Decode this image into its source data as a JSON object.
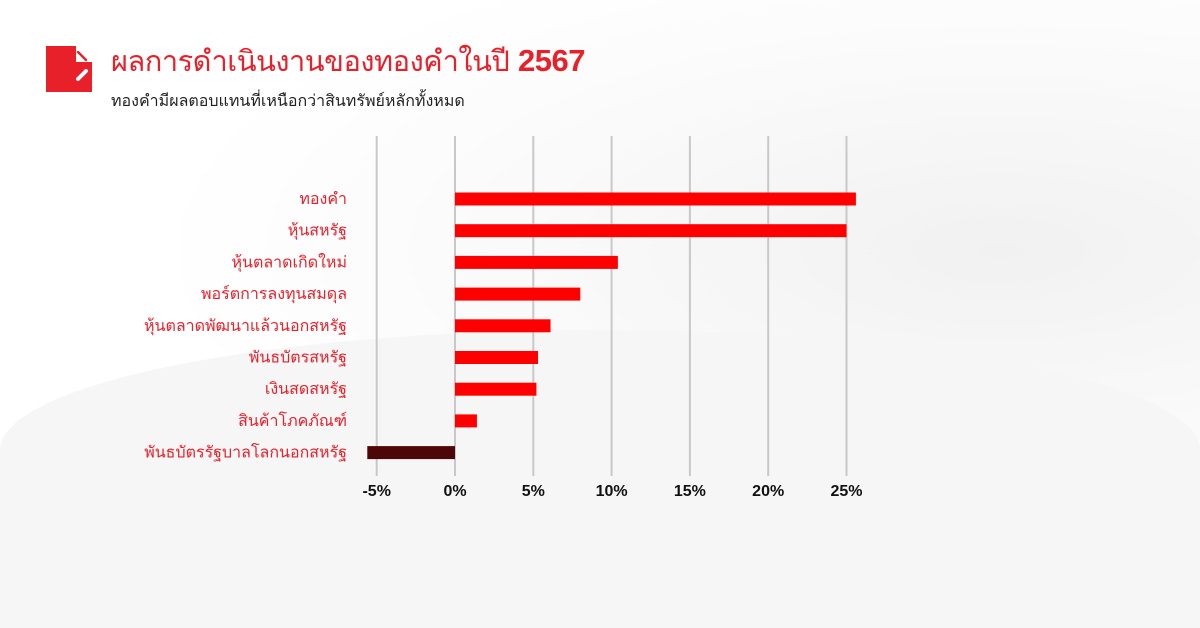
{
  "header": {
    "title": "ผลการดำเนินงานของทองคำในปี",
    "title_year": "2567",
    "subtitle": "ทองคำมีผลตอบแทนที่เหนือกว่าสินทรัพย์หลักทั้งหมด",
    "logo_icon": "red-square-logo-icon"
  },
  "chart_data": {
    "type": "bar",
    "orientation": "horizontal",
    "categories": [
      "ทองคำ",
      "หุ้นสหรัฐ",
      "หุ้นตลาดเกิดใหม่",
      "พอร์ตการลงทุนสมดุล",
      "หุ้นตลาดพัฒนาแล้วนอกสหรัฐ",
      "พันธบัตรสหรัฐ",
      "เงินสดสหรัฐ",
      "สินค้าโภคภัณฑ์",
      "พันธบัตรรัฐบาลโลกนอกสหรัฐ"
    ],
    "values": [
      25.6,
      25.0,
      10.4,
      8.0,
      6.1,
      5.3,
      5.2,
      1.4,
      -5.6
    ],
    "unit": "%",
    "xlim": [
      -5,
      25
    ],
    "xticks": [
      "-5%",
      "0%",
      "5%",
      "10%",
      "15%",
      "20%",
      "25%"
    ],
    "xtick_values": [
      -5,
      0,
      5,
      10,
      15,
      20,
      25
    ],
    "grid": "vertical",
    "colors": {
      "positive": "#ff0000",
      "negative": "#4f0608",
      "label": "#e8202a",
      "grid": "#c8c8c8"
    }
  }
}
